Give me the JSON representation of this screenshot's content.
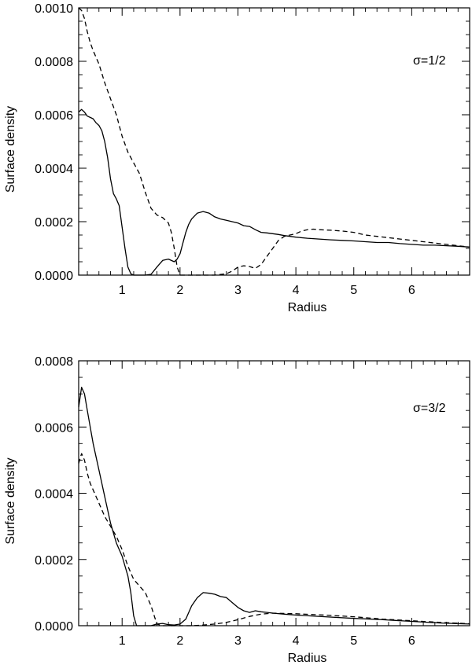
{
  "chart_data": [
    {
      "type": "line",
      "xlabel": "Radius",
      "ylabel": "Surface density",
      "annotation": "σ=1/2",
      "xlim": [
        0.25,
        7.0
      ],
      "ylim": [
        0.0,
        0.001
      ],
      "xticks": [
        {
          "value": 1,
          "label": "1"
        },
        {
          "value": 2,
          "label": "2"
        },
        {
          "value": 3,
          "label": "3"
        },
        {
          "value": 4,
          "label": "4"
        },
        {
          "value": 5,
          "label": "5"
        },
        {
          "value": 6,
          "label": "6"
        }
      ],
      "yticks": [
        {
          "value": 0.0,
          "label": "0.0000"
        },
        {
          "value": 0.0002,
          "label": "0.0002"
        },
        {
          "value": 0.0004,
          "label": "0.0004"
        },
        {
          "value": 0.0006,
          "label": "0.0006"
        },
        {
          "value": 0.0008,
          "label": "0.0008"
        },
        {
          "value": 0.001,
          "label": "0.0010"
        }
      ],
      "series": [
        {
          "style": "solid",
          "x": [
            0.25,
            0.3,
            0.35,
            0.4,
            0.45,
            0.5,
            0.55,
            0.6,
            0.65,
            0.7,
            0.75,
            0.8,
            0.85,
            0.9,
            0.95,
            1.0,
            1.05,
            1.1,
            1.15,
            1.2,
            1.3,
            1.4,
            1.5,
            1.6,
            1.7,
            1.8,
            1.9,
            1.95,
            2.0,
            2.05,
            2.1,
            2.15,
            2.2,
            2.3,
            2.4,
            2.5,
            2.6,
            2.7,
            2.8,
            2.9,
            3.0,
            3.1,
            3.2,
            3.3,
            3.4,
            3.5,
            3.6,
            3.7,
            3.8,
            3.9,
            4.0,
            4.2,
            4.4,
            4.6,
            4.8,
            5.0,
            5.2,
            5.4,
            5.6,
            5.8,
            6.0,
            6.2,
            6.4,
            6.6,
            6.8,
            7.0
          ],
          "y": [
            0.00061,
            0.00062,
            0.00061,
            0.000595,
            0.00059,
            0.000585,
            0.00057,
            0.00056,
            0.00054,
            0.0005,
            0.00044,
            0.00036,
            0.000305,
            0.000285,
            0.00026,
            0.00018,
            0.0001,
            3e-05,
            5e-06,
            0.0,
            0.0,
            0.0,
            3e-06,
            3e-05,
            5.5e-05,
            6e-05,
            5e-05,
            6e-05,
            8e-05,
            0.00012,
            0.00016,
            0.00019,
            0.00021,
            0.000232,
            0.000238,
            0.000232,
            0.000218,
            0.00021,
            0.000205,
            0.0002,
            0.000195,
            0.000185,
            0.000182,
            0.00017,
            0.00016,
            0.000158,
            0.000155,
            0.000152,
            0.000148,
            0.000145,
            0.000142,
            0.000138,
            0.000135,
            0.000132,
            0.00013,
            0.000128,
            0.000125,
            0.000122,
            0.000122,
            0.000118,
            0.000115,
            0.000112,
            0.000112,
            0.00011,
            0.000108,
            0.000105
          ]
        },
        {
          "style": "dashed",
          "x": [
            0.25,
            0.3,
            0.35,
            0.4,
            0.45,
            0.5,
            0.6,
            0.7,
            0.8,
            0.9,
            1.0,
            1.1,
            1.2,
            1.3,
            1.4,
            1.5,
            1.6,
            1.7,
            1.8,
            1.85,
            1.9,
            1.95,
            2.0,
            2.1,
            2.2,
            2.4,
            2.6,
            2.8,
            2.9,
            3.0,
            3.1,
            3.2,
            3.3,
            3.4,
            3.5,
            3.6,
            3.7,
            3.8,
            3.9,
            4.0,
            4.1,
            4.2,
            4.3,
            4.4,
            4.6,
            4.8,
            5.0,
            5.2,
            5.4,
            5.6,
            5.8,
            6.0,
            6.2,
            6.4,
            6.6,
            6.8,
            7.0
          ],
          "y": [
            0.001,
            0.00099,
            0.00096,
            0.00091,
            0.00087,
            0.00084,
            0.00079,
            0.00072,
            0.00066,
            0.0006,
            0.00052,
            0.00046,
            0.00042,
            0.00038,
            0.00031,
            0.00025,
            0.000225,
            0.000215,
            0.000195,
            0.00016,
            0.0001,
            3e-05,
            0.0,
            0.0,
            0.0,
            0.0,
            0.0,
            5e-06,
            1.5e-05,
            3e-05,
            3.5e-05,
            3.2e-05,
            2.5e-05,
            4e-05,
            7e-05,
            0.0001,
            0.00013,
            0.000145,
            0.00015,
            0.000155,
            0.000165,
            0.00017,
            0.000172,
            0.00017,
            0.000168,
            0.000165,
            0.00016,
            0.00015,
            0.000145,
            0.00014,
            0.000135,
            0.00013,
            0.000125,
            0.00012,
            0.000115,
            0.00011,
            0.000105
          ]
        }
      ]
    },
    {
      "type": "line",
      "xlabel": "Radius",
      "ylabel": "Surface density",
      "annotation": "σ=3/2",
      "xlim": [
        0.25,
        7.0
      ],
      "ylim": [
        0.0,
        0.0008
      ],
      "xticks": [
        {
          "value": 1,
          "label": "1"
        },
        {
          "value": 2,
          "label": "2"
        },
        {
          "value": 3,
          "label": "3"
        },
        {
          "value": 4,
          "label": "4"
        },
        {
          "value": 5,
          "label": "5"
        },
        {
          "value": 6,
          "label": "6"
        }
      ],
      "yticks": [
        {
          "value": 0.0,
          "label": "0.0000"
        },
        {
          "value": 0.0002,
          "label": "0.0002"
        },
        {
          "value": 0.0004,
          "label": "0.0004"
        },
        {
          "value": 0.0006,
          "label": "0.0006"
        },
        {
          "value": 0.0008,
          "label": "0.0008"
        }
      ],
      "series": [
        {
          "style": "solid",
          "x": [
            0.25,
            0.3,
            0.35,
            0.4,
            0.45,
            0.5,
            0.6,
            0.7,
            0.8,
            0.9,
            1.0,
            1.1,
            1.15,
            1.2,
            1.25,
            1.3,
            1.4,
            1.5,
            1.6,
            1.7,
            1.8,
            1.9,
            2.0,
            2.1,
            2.2,
            2.3,
            2.4,
            2.5,
            2.6,
            2.7,
            2.8,
            2.9,
            3.0,
            3.1,
            3.2,
            3.3,
            3.4,
            3.5,
            3.6,
            3.8,
            4.0,
            4.5,
            5.0,
            5.5,
            6.0,
            6.5,
            7.0
          ],
          "y": [
            0.00066,
            0.00072,
            0.0007,
            0.00065,
            0.0006,
            0.00055,
            0.00047,
            0.00039,
            0.00031,
            0.00025,
            0.00021,
            0.00015,
            0.0001,
            3e-05,
            0.0,
            0.0,
            0.0,
            0.0,
            5e-06,
            7e-06,
            3e-06,
            2e-06,
            5e-06,
            2e-05,
            6e-05,
            8.5e-05,
            0.0001,
            9.8e-05,
            9.5e-05,
            8.8e-05,
            8.5e-05,
            7e-05,
            5.5e-05,
            4.5e-05,
            4e-05,
            4.5e-05,
            4.2e-05,
            4e-05,
            3.8e-05,
            3.5e-05,
            3.2e-05,
            2.7e-05,
            2.2e-05,
            1.8e-05,
            1.3e-05,
            8e-06,
            5e-06
          ]
        },
        {
          "style": "dashed",
          "x": [
            0.25,
            0.3,
            0.35,
            0.4,
            0.45,
            0.5,
            0.6,
            0.7,
            0.8,
            0.9,
            1.0,
            1.1,
            1.2,
            1.3,
            1.4,
            1.5,
            1.6,
            1.7,
            1.8,
            2.0,
            2.2,
            2.4,
            2.6,
            2.8,
            3.0,
            3.2,
            3.4,
            3.6,
            3.8,
            4.0,
            4.5,
            5.0,
            5.5,
            6.0,
            6.5,
            7.0
          ],
          "y": [
            0.00049,
            0.00052,
            0.0005,
            0.00046,
            0.00043,
            0.00041,
            0.00037,
            0.00033,
            0.0003,
            0.00027,
            0.00023,
            0.00018,
            0.00014,
            0.00012,
            0.0001,
            6e-05,
            5e-06,
            0.0,
            0.0,
            0.0,
            0.0,
            2e-06,
            5e-06,
            1e-05,
            1.8e-05,
            2.8e-05,
            3.5e-05,
            3.8e-05,
            3.7e-05,
            3.6e-05,
            3.2e-05,
            2.7e-05,
            2e-05,
            1.5e-05,
            1e-05,
            6e-06
          ]
        }
      ]
    }
  ]
}
